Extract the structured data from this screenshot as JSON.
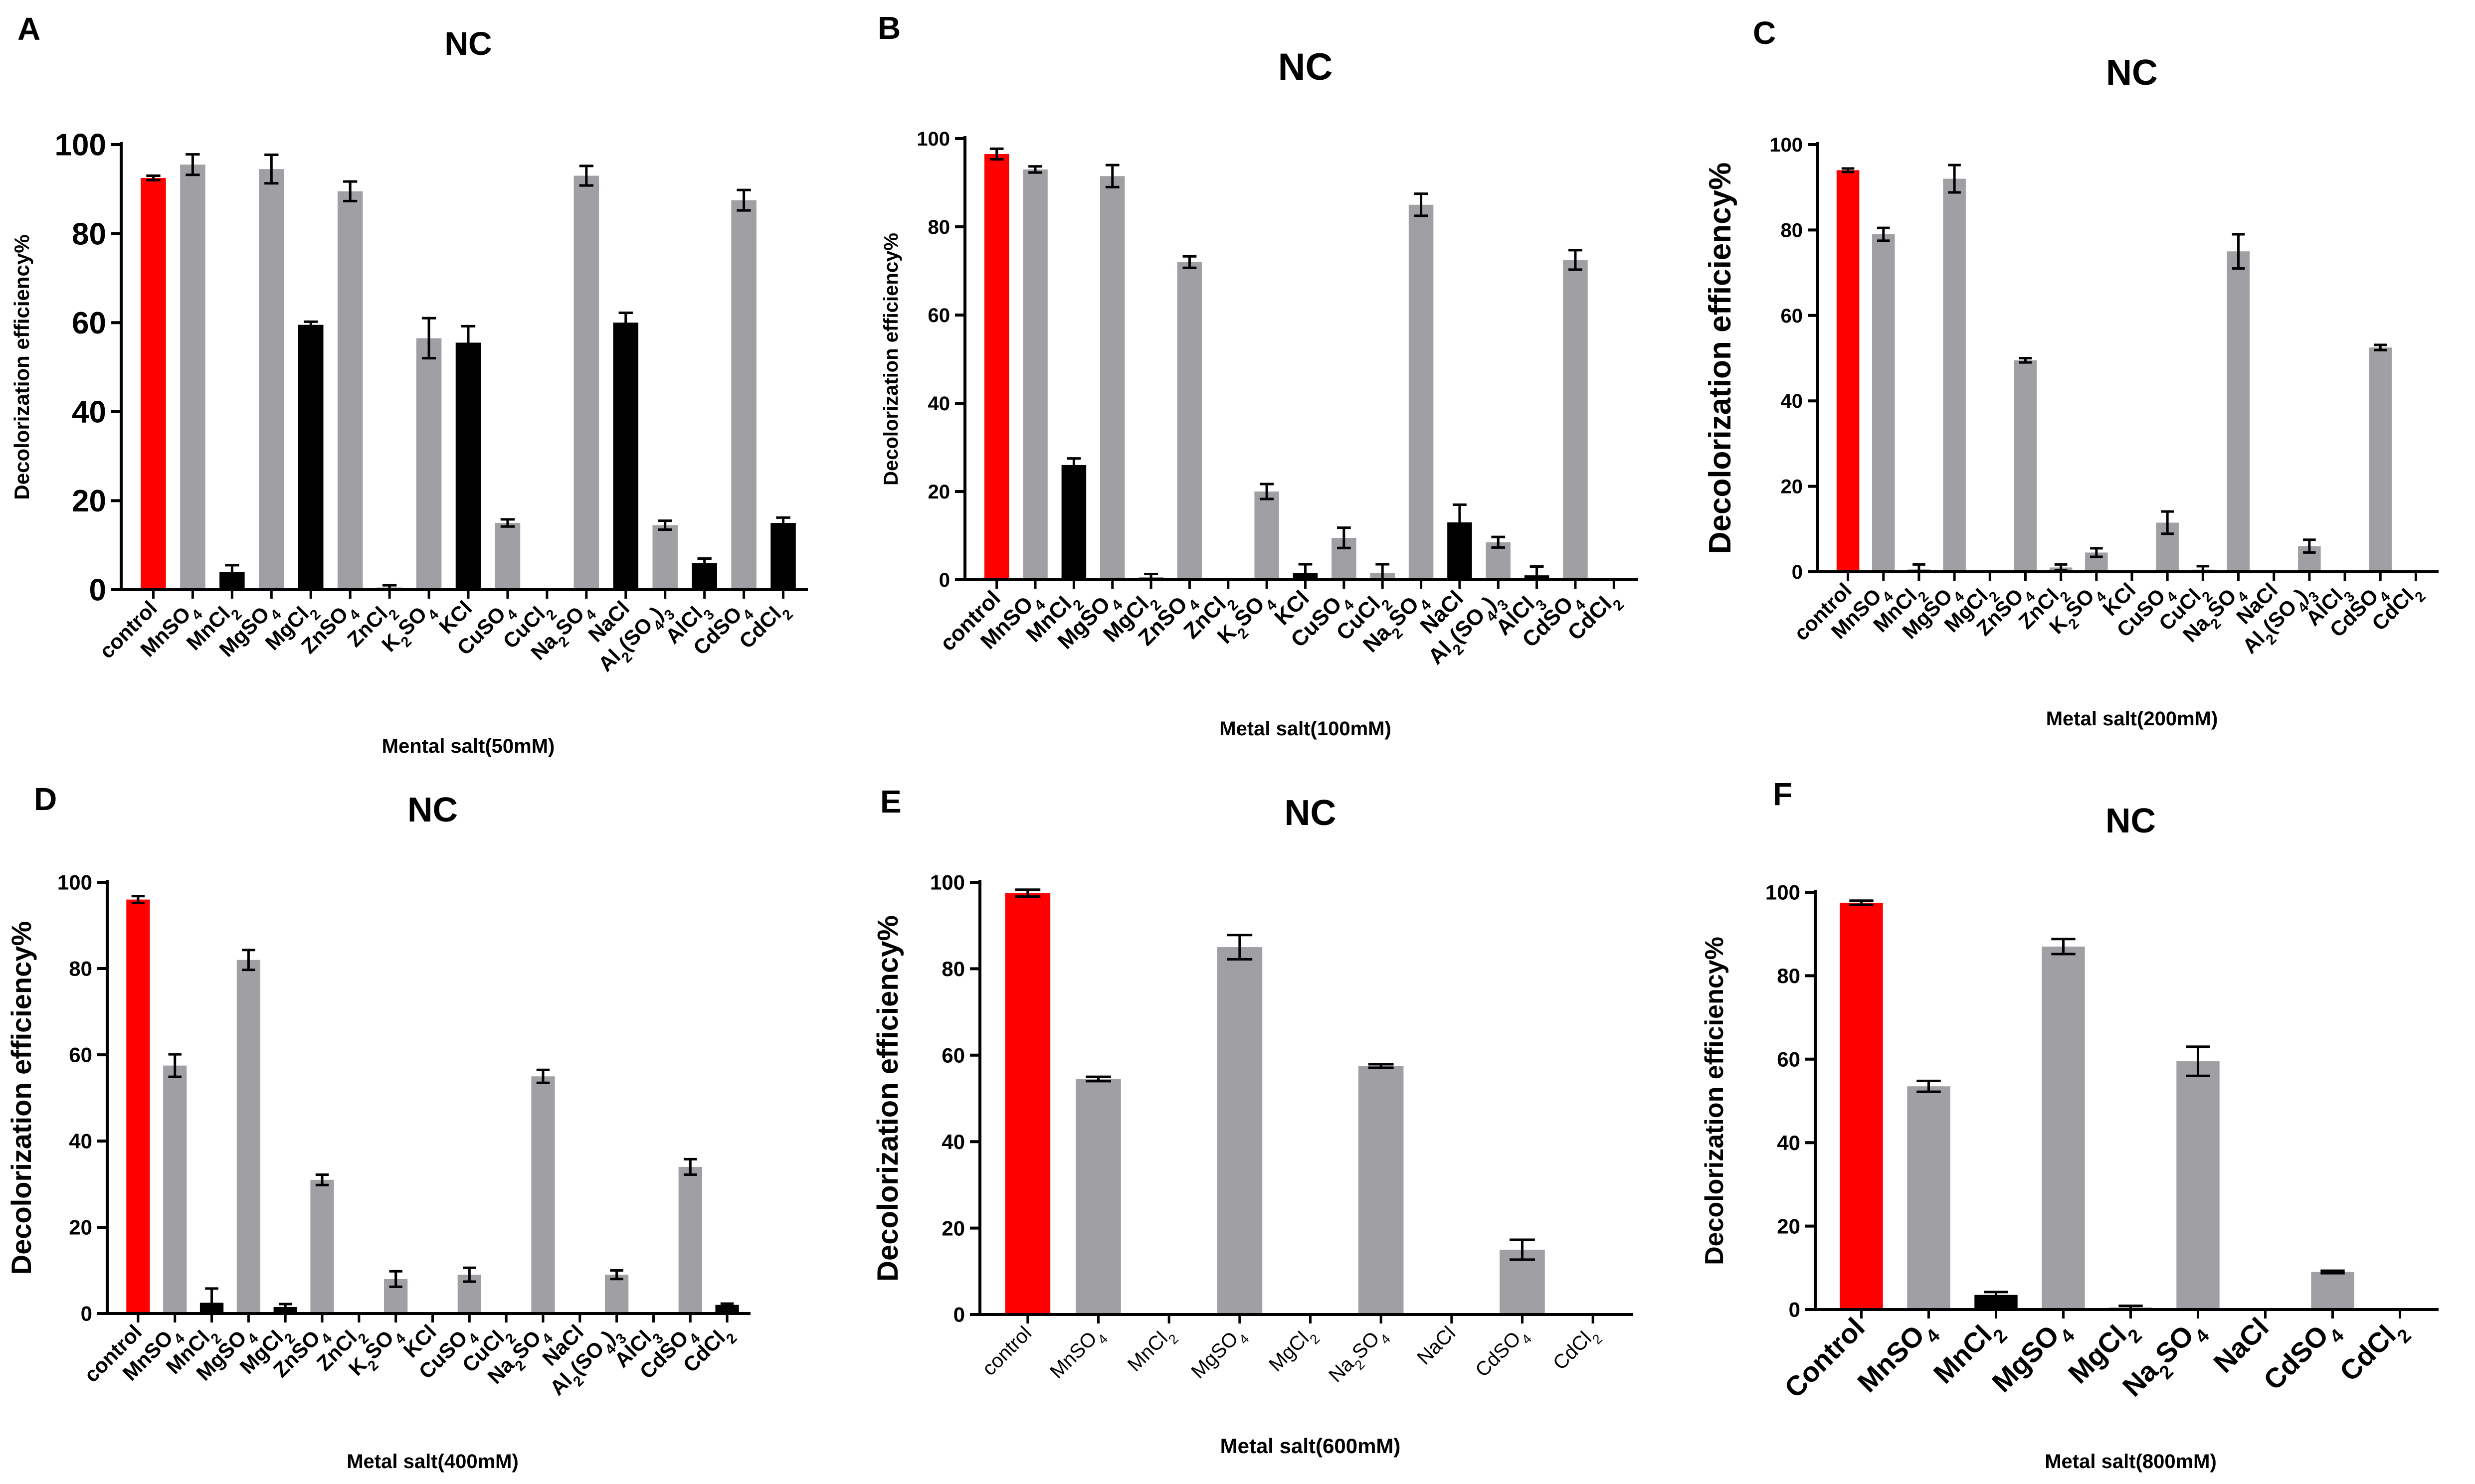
{
  "colors": {
    "control": "#ff0000",
    "gray": "#a0a0a4",
    "black": "#000000",
    "axis": "#000000"
  },
  "chart_data": [
    {
      "type": "bar",
      "panel_label": "A",
      "title": "NC",
      "xlabel": "Mental salt(50mM)",
      "ylabel": "Decolorization efficiency%",
      "ylim": [
        0,
        100
      ],
      "yticks": [
        0,
        20,
        40,
        60,
        80,
        100
      ],
      "categories": [
        "control",
        "MnSO4",
        "MnCl2",
        "MgSO4",
        "MgCl2",
        "ZnSO4",
        "ZnCl2",
        "K2SO4",
        "KCl",
        "CuSO4",
        "CuCl2",
        "Na2SO4",
        "NaCl",
        "Al2(SO4)3",
        "AlCl3",
        "CdSO4",
        "CdCl2"
      ],
      "values": [
        92.5,
        95.5,
        4,
        94.5,
        59.5,
        89.5,
        0.5,
        56.5,
        55.5,
        15,
        0,
        93,
        60,
        14.5,
        6,
        87.5,
        15
      ],
      "errors": [
        0.5,
        2.3,
        1.5,
        3.2,
        0.7,
        2.2,
        0.5,
        4.5,
        3.7,
        0.8,
        0,
        2.2,
        2.2,
        1,
        1,
        2.3,
        1.2
      ],
      "colors": [
        "control",
        "gray",
        "black",
        "gray",
        "black",
        "gray",
        "gray",
        "gray",
        "black",
        "gray",
        "gray",
        "gray",
        "black",
        "gray",
        "black",
        "gray",
        "black"
      ]
    },
    {
      "type": "bar",
      "panel_label": "B",
      "title": "NC",
      "xlabel": "Metal salt(100mM)",
      "ylabel": "Decolorization efficiency%",
      "ylim": [
        0,
        100
      ],
      "yticks": [
        0,
        20,
        40,
        60,
        80,
        100
      ],
      "categories": [
        "control",
        "MnSO4",
        "MnCl2",
        "MgSO4",
        "MgCl2",
        "ZnSO4",
        "ZnCl2",
        "K2SO4",
        "KCl",
        "CuSO4",
        "CuCl2",
        "Na2SO4",
        "NaCl",
        "Al2(SO4)3",
        "AlCl3",
        "CdSO4",
        "CdCl2"
      ],
      "values": [
        96.5,
        93,
        26,
        91.5,
        0.5,
        72,
        0,
        20,
        1.5,
        9.5,
        1.5,
        85,
        13,
        8.5,
        1,
        72.5,
        0
      ],
      "errors": [
        1.2,
        0.7,
        1.5,
        2.5,
        0.8,
        1.3,
        0,
        1.7,
        2,
        2.3,
        2,
        2.5,
        4,
        1.2,
        2,
        2.2,
        0
      ],
      "colors": [
        "control",
        "gray",
        "black",
        "gray",
        "black",
        "gray",
        "gray",
        "gray",
        "black",
        "gray",
        "gray",
        "gray",
        "black",
        "gray",
        "black",
        "gray",
        "black"
      ]
    },
    {
      "type": "bar",
      "panel_label": "C",
      "title": "NC",
      "xlabel": "Metal salt(200mM)",
      "ylabel": "Decolorization efficiency%",
      "ylim": [
        0,
        100
      ],
      "yticks": [
        0,
        20,
        40,
        60,
        80,
        100
      ],
      "categories": [
        "control",
        "MnSO4",
        "MnCl2",
        "MgSO4",
        "MgCl2",
        "ZnSO4",
        "ZnCl2",
        "K2SO4",
        "KCl",
        "CuSO4",
        "CuCl2",
        "Na2SO4",
        "NaCl",
        "Al2(SO4)3",
        "AlCl3",
        "CdSO4",
        "CdCl2"
      ],
      "values": [
        94,
        79,
        0.5,
        92,
        0,
        49.5,
        1,
        4.5,
        0,
        11.5,
        0.5,
        75,
        0,
        6,
        0,
        52.5,
        0
      ],
      "errors": [
        0.4,
        1.5,
        1.2,
        3.2,
        0,
        0.5,
        0.7,
        1,
        0,
        2.6,
        0.8,
        4,
        0,
        1.5,
        0,
        0.6,
        0
      ],
      "colors": [
        "control",
        "gray",
        "black",
        "gray",
        "black",
        "gray",
        "gray",
        "gray",
        "black",
        "gray",
        "gray",
        "gray",
        "black",
        "gray",
        "black",
        "gray",
        "black"
      ]
    },
    {
      "type": "bar",
      "panel_label": "D",
      "title": "NC",
      "xlabel": "Metal salt(400mM)",
      "ylabel": "Decolorization efficiency%",
      "ylim": [
        0,
        100
      ],
      "yticks": [
        0,
        20,
        40,
        60,
        80,
        100
      ],
      "categories": [
        "control",
        "MnSO4",
        "MnCl2",
        "MgSO4",
        "MgCl2",
        "ZnSO4",
        "ZnCl2",
        "K2SO4",
        "KCl",
        "CuSO4",
        "CuCl2",
        "Na2SO4",
        "NaCl",
        "Al2(SO4)3",
        "AlCl3",
        "CdSO4",
        "CdCl2"
      ],
      "values": [
        96,
        57.5,
        2.5,
        82,
        1.5,
        31,
        0,
        8,
        0,
        9,
        0,
        55,
        0,
        9,
        0,
        34,
        2
      ],
      "errors": [
        0.8,
        2.6,
        3.3,
        2.3,
        0.7,
        1.2,
        0,
        1.8,
        0,
        1.6,
        0,
        1.5,
        0,
        1,
        0,
        1.8,
        0.3
      ],
      "colors": [
        "control",
        "gray",
        "black",
        "gray",
        "black",
        "gray",
        "gray",
        "gray",
        "black",
        "gray",
        "gray",
        "gray",
        "black",
        "gray",
        "black",
        "gray",
        "black"
      ]
    },
    {
      "type": "bar",
      "panel_label": "E",
      "title": "NC",
      "xlabel": "Metal salt(600mM)",
      "ylabel": "Decolorization efficiency%",
      "ylim": [
        0,
        100
      ],
      "yticks": [
        0,
        20,
        40,
        60,
        80,
        100
      ],
      "categories": [
        "control",
        "MnSO4",
        "MnCl2",
        "MgSO4",
        "MgCl2",
        "Na2SO4",
        "NaCl",
        "CdSO4",
        "CdCl2"
      ],
      "values": [
        97.5,
        54.5,
        0,
        85,
        0,
        57.5,
        0,
        15,
        0
      ],
      "errors": [
        0.8,
        0.5,
        0,
        2.8,
        0,
        0.4,
        0,
        2.3,
        0
      ],
      "colors": [
        "control",
        "gray",
        "gray",
        "gray",
        "gray",
        "gray",
        "gray",
        "gray",
        "gray"
      ]
    },
    {
      "type": "bar",
      "panel_label": "F",
      "title": "NC",
      "xlabel": "Metal salt(800mM)",
      "ylabel": "Decolorization efficiency%",
      "ylim": [
        0,
        100
      ],
      "yticks": [
        0,
        20,
        40,
        60,
        80,
        100
      ],
      "categories": [
        "Control",
        "MnSO4",
        "MnCl2",
        "MgSO4",
        "MgCl2",
        "Na2SO4",
        "NaCl",
        "CdSO4",
        "CdCl2"
      ],
      "values": [
        97.5,
        53.5,
        3.5,
        87,
        0.5,
        59.5,
        0,
        9,
        0
      ],
      "errors": [
        0.5,
        1.3,
        0.7,
        1.8,
        0.4,
        3.5,
        0,
        0.3,
        0
      ],
      "colors": [
        "control",
        "gray",
        "black",
        "gray",
        "gray",
        "gray",
        "gray",
        "gray",
        "gray"
      ]
    }
  ]
}
